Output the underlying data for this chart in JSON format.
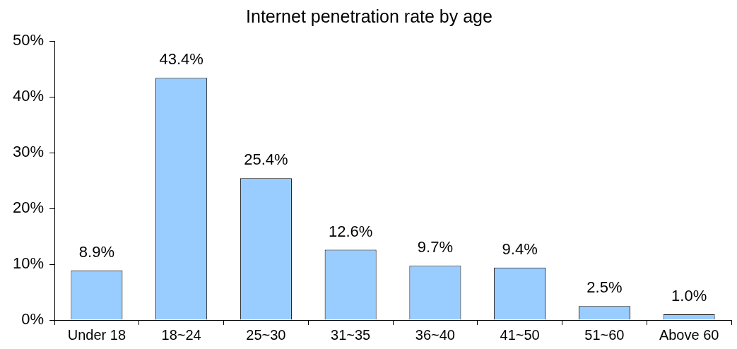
{
  "chart_data": {
    "type": "bar",
    "title": "Internet penetration rate by age",
    "categories": [
      "Under 18",
      "18~24",
      "25~30",
      "31~35",
      "36~40",
      "41~50",
      "51~60",
      "Above 60"
    ],
    "values": [
      8.9,
      43.4,
      25.4,
      12.6,
      9.7,
      9.4,
      2.5,
      1.0
    ],
    "value_labels": [
      "8.9%",
      "43.4%",
      "25.4%",
      "12.6%",
      "9.7%",
      "9.4%",
      "2.5%",
      "1.0%"
    ],
    "color": "#99ccff",
    "ylim": [
      0,
      50
    ],
    "yticks": [
      {
        "value": 0,
        "label": "0%"
      },
      {
        "value": 10,
        "label": "10%"
      },
      {
        "value": 20,
        "label": "20%"
      },
      {
        "value": 30,
        "label": "30%"
      },
      {
        "value": 40,
        "label": "40%"
      },
      {
        "value": 50,
        "label": "50%"
      }
    ]
  }
}
